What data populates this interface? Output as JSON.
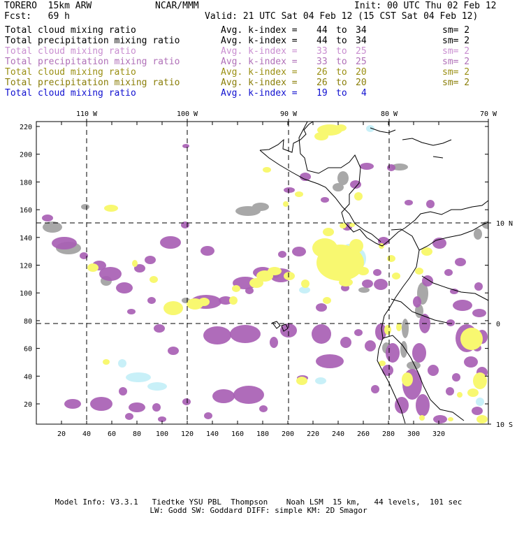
{
  "header": {
    "model": "TORERO  15km ARW",
    "org": "NCAR/MMM",
    "init": "Init: 00 UTC Thu 02 Feb 12",
    "fcst": "Fcst:   69 h",
    "valid": "Valid: 21 UTC Sat 04 Feb 12 (15 CST Sat 04 Feb 12)"
  },
  "legend": [
    {
      "field": "Total cloud mixing ratio",
      "kindex": "Avg. k-index =",
      "from": "44",
      "to_word": "to",
      "to": "34",
      "sm": "sm= 2",
      "color": "#000000"
    },
    {
      "field": "Total precipitation mixing ratio",
      "kindex": "Avg. k-index =",
      "from": "44",
      "to_word": "to",
      "to": "34",
      "sm": "sm= 2",
      "color": "#000000"
    },
    {
      "field": "Total cloud mixing ratio",
      "kindex": "Avg. k-index =",
      "from": "33",
      "to_word": "to",
      "to": "25",
      "sm": "sm= 2",
      "color": "#c98ed0"
    },
    {
      "field": "Total precipitation mixing ratio",
      "kindex": "Avg. k-index =",
      "from": "33",
      "to_word": "to",
      "to": "25",
      "sm": "sm= 2",
      "color": "#b070b8"
    },
    {
      "field": "Total cloud mixing ratio",
      "kindex": "Avg. k-index =",
      "from": "26",
      "to_word": "to",
      "to": "20",
      "sm": "sm= 2",
      "color": "#9a8f12"
    },
    {
      "field": "Total precipitation mixing ratio",
      "kindex": "Avg. k-index =",
      "from": "26",
      "to_word": "to",
      "to": "20",
      "sm": "sm= 2",
      "color": "#8a7e08"
    },
    {
      "field": "Total cloud mixing ratio",
      "kindex": "Avg. k-index =",
      "from": "19",
      "to_word": "to",
      "to": "4",
      "sm": "",
      "color": "#1010d0"
    }
  ],
  "map": {
    "lon_labels": [
      "110 W",
      "100 W",
      "90 W",
      "80 W",
      "70 W"
    ],
    "lat_labels": [
      "10 N",
      "0",
      "10 S"
    ],
    "y_ticks": [
      "220",
      "200",
      "180",
      "160",
      "140",
      "120",
      "100",
      "80",
      "60",
      "40",
      "20"
    ],
    "x_ticks": [
      "20",
      "40",
      "60",
      "80",
      "100",
      "120",
      "140",
      "160",
      "180",
      "200",
      "220",
      "240",
      "260",
      "280",
      "300",
      "320"
    ]
  },
  "colors": {
    "gray": "#a8a8a8",
    "purple": "#a860b4",
    "yellow": "#f8f870",
    "lightcyan": "#c8f0f8",
    "coast": "#000000"
  },
  "footer": {
    "line1": "Model Info: V3.3.1   Tiedtke YSU PBL  Thompson    Noah LSM  15 km,   44 levels,  101 sec",
    "line2": "LW: Godd SW: Goddard DIFF: simple KM: 2D Smagor"
  }
}
